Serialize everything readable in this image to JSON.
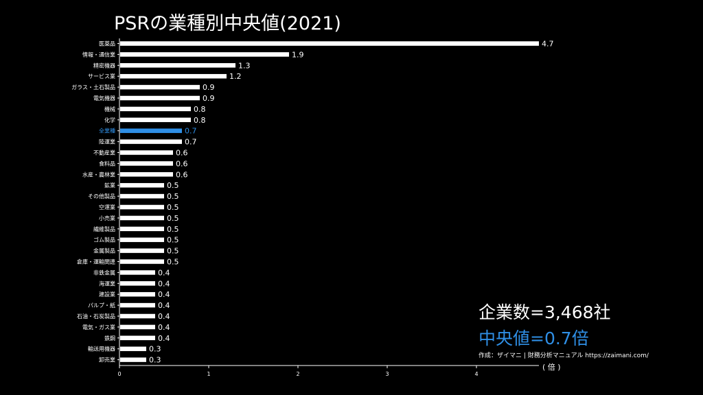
{
  "title": "PSRの業種別中央値(2021)",
  "stats": {
    "count_text": "企業数=3,468社",
    "median_text": "中央値=0.7倍"
  },
  "credit": "作成：ザイマニ | 財務分析マニュアル https://zaimani.com/",
  "colors": {
    "background": "#000000",
    "bar": "#ffffff",
    "highlight": "#2f8fe6",
    "text": "#ffffff"
  },
  "chart_data": {
    "type": "bar",
    "orientation": "horizontal",
    "categories": [
      "医薬品",
      "情報・通信業",
      "精密機器",
      "サービス業",
      "ガラス・土石製品",
      "電気機器",
      "機械",
      "化学",
      "全業種",
      "陸運業",
      "不動産業",
      "食料品",
      "水産・農林業",
      "鉱業",
      "その他製品",
      "空運業",
      "小売業",
      "繊維製品",
      "ゴム製品",
      "金属製品",
      "倉庫・運輸関連",
      "非鉄金属",
      "海運業",
      "建設業",
      "パルプ・紙",
      "石油・石炭製品",
      "電気・ガス業",
      "鉄鋼",
      "輸送用機器",
      "卸売業"
    ],
    "values": [
      4.7,
      1.9,
      1.3,
      1.2,
      0.9,
      0.9,
      0.8,
      0.8,
      0.7,
      0.7,
      0.6,
      0.6,
      0.6,
      0.5,
      0.5,
      0.5,
      0.5,
      0.5,
      0.5,
      0.5,
      0.5,
      0.4,
      0.4,
      0.4,
      0.4,
      0.4,
      0.4,
      0.4,
      0.3,
      0.3
    ],
    "value_labels": [
      "4.7",
      "1.9",
      "1.3",
      "1.2",
      "0.9",
      "0.9",
      "0.8",
      "0.8",
      "0.7",
      "0.7",
      "0.6",
      "0.6",
      "0.6",
      "0.5",
      "0.5",
      "0.5",
      "0.5",
      "0.5",
      "0.5",
      "0.5",
      "0.5",
      "0.4",
      "0.4",
      "0.4",
      "0.4",
      "0.4",
      "0.4",
      "0.4",
      "0.3",
      "0.3"
    ],
    "highlight_category": "全業種",
    "xlim": [
      0,
      4.7
    ],
    "xticks": [
      0,
      1,
      2,
      3,
      4
    ],
    "xunit": "( 倍 )",
    "grid": false,
    "legend": "none"
  }
}
